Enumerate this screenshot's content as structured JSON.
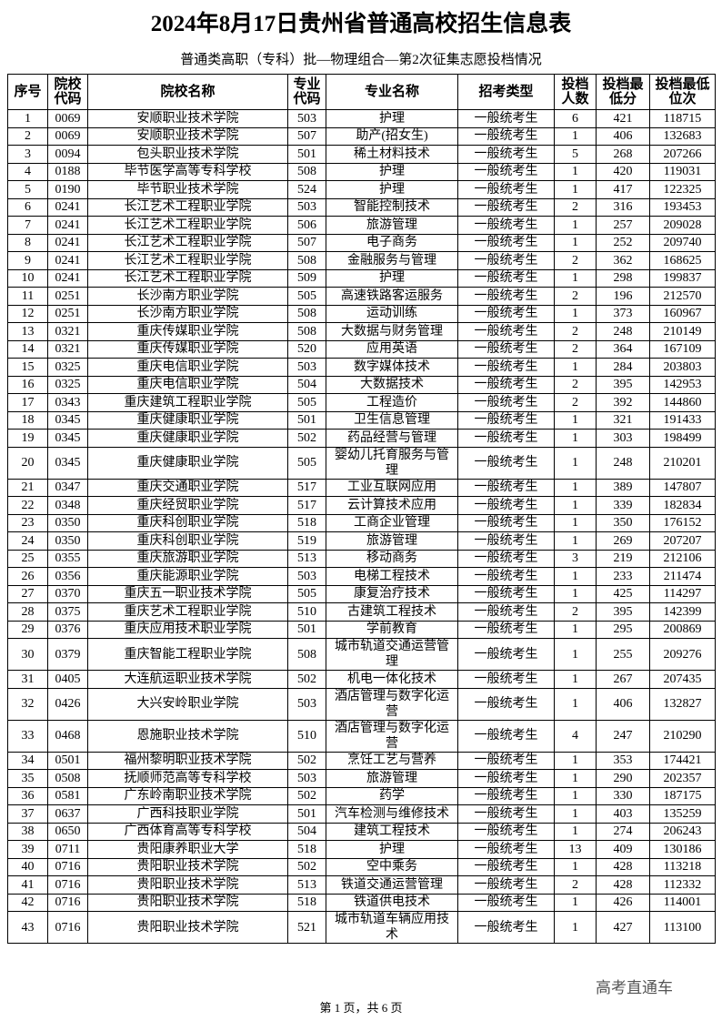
{
  "header": {
    "title": "2024年8月17日贵州省普通高校招生信息表",
    "subtitle": "普通类高职（专科）批—物理组合—第2次征集志愿投档情况"
  },
  "table": {
    "columns": [
      "序号",
      "院校代码",
      "院校名称",
      "专业代码",
      "专业名称",
      "招考类型",
      "投档人数",
      "投档最低分",
      "投档最低位次"
    ],
    "rows": [
      [
        "1",
        "0069",
        "安顺职业技术学院",
        "503",
        "护理",
        "一般统考生",
        "6",
        "421",
        "118715"
      ],
      [
        "2",
        "0069",
        "安顺职业技术学院",
        "507",
        "助产(招女生)",
        "一般统考生",
        "1",
        "406",
        "132683"
      ],
      [
        "3",
        "0094",
        "包头职业技术学院",
        "501",
        "稀土材料技术",
        "一般统考生",
        "5",
        "268",
        "207266"
      ],
      [
        "4",
        "0188",
        "毕节医学高等专科学校",
        "508",
        "护理",
        "一般统考生",
        "1",
        "420",
        "119031"
      ],
      [
        "5",
        "0190",
        "毕节职业技术学院",
        "524",
        "护理",
        "一般统考生",
        "1",
        "417",
        "122325"
      ],
      [
        "6",
        "0241",
        "长江艺术工程职业学院",
        "503",
        "智能控制技术",
        "一般统考生",
        "2",
        "316",
        "193453"
      ],
      [
        "7",
        "0241",
        "长江艺术工程职业学院",
        "506",
        "旅游管理",
        "一般统考生",
        "1",
        "257",
        "209028"
      ],
      [
        "8",
        "0241",
        "长江艺术工程职业学院",
        "507",
        "电子商务",
        "一般统考生",
        "1",
        "252",
        "209740"
      ],
      [
        "9",
        "0241",
        "长江艺术工程职业学院",
        "508",
        "金融服务与管理",
        "一般统考生",
        "2",
        "362",
        "168625"
      ],
      [
        "10",
        "0241",
        "长江艺术工程职业学院",
        "509",
        "护理",
        "一般统考生",
        "1",
        "298",
        "199837"
      ],
      [
        "11",
        "0251",
        "长沙南方职业学院",
        "505",
        "高速铁路客运服务",
        "一般统考生",
        "2",
        "196",
        "212570"
      ],
      [
        "12",
        "0251",
        "长沙南方职业学院",
        "508",
        "运动训练",
        "一般统考生",
        "1",
        "373",
        "160967"
      ],
      [
        "13",
        "0321",
        "重庆传媒职业学院",
        "508",
        "大数据与财务管理",
        "一般统考生",
        "2",
        "248",
        "210149"
      ],
      [
        "14",
        "0321",
        "重庆传媒职业学院",
        "520",
        "应用英语",
        "一般统考生",
        "2",
        "364",
        "167109"
      ],
      [
        "15",
        "0325",
        "重庆电信职业学院",
        "503",
        "数字媒体技术",
        "一般统考生",
        "1",
        "284",
        "203803"
      ],
      [
        "16",
        "0325",
        "重庆电信职业学院",
        "504",
        "大数据技术",
        "一般统考生",
        "2",
        "395",
        "142953"
      ],
      [
        "17",
        "0343",
        "重庆建筑工程职业学院",
        "505",
        "工程造价",
        "一般统考生",
        "2",
        "392",
        "144860"
      ],
      [
        "18",
        "0345",
        "重庆健康职业学院",
        "501",
        "卫生信息管理",
        "一般统考生",
        "1",
        "321",
        "191433"
      ],
      [
        "19",
        "0345",
        "重庆健康职业学院",
        "502",
        "药品经营与管理",
        "一般统考生",
        "1",
        "303",
        "198499"
      ],
      [
        "20",
        "0345",
        "重庆健康职业学院",
        "505",
        "婴幼儿托育服务与管理",
        "一般统考生",
        "1",
        "248",
        "210201"
      ],
      [
        "21",
        "0347",
        "重庆交通职业学院",
        "517",
        "工业互联网应用",
        "一般统考生",
        "1",
        "389",
        "147807"
      ],
      [
        "22",
        "0348",
        "重庆经贸职业学院",
        "517",
        "云计算技术应用",
        "一般统考生",
        "1",
        "339",
        "182834"
      ],
      [
        "23",
        "0350",
        "重庆科创职业学院",
        "518",
        "工商企业管理",
        "一般统考生",
        "1",
        "350",
        "176152"
      ],
      [
        "24",
        "0350",
        "重庆科创职业学院",
        "519",
        "旅游管理",
        "一般统考生",
        "1",
        "269",
        "207207"
      ],
      [
        "25",
        "0355",
        "重庆旅游职业学院",
        "513",
        "移动商务",
        "一般统考生",
        "3",
        "219",
        "212106"
      ],
      [
        "26",
        "0356",
        "重庆能源职业学院",
        "503",
        "电梯工程技术",
        "一般统考生",
        "1",
        "233",
        "211474"
      ],
      [
        "27",
        "0370",
        "重庆五一职业技术学院",
        "505",
        "康复治疗技术",
        "一般统考生",
        "1",
        "425",
        "114297"
      ],
      [
        "28",
        "0375",
        "重庆艺术工程职业学院",
        "510",
        "古建筑工程技术",
        "一般统考生",
        "2",
        "395",
        "142399"
      ],
      [
        "29",
        "0376",
        "重庆应用技术职业学院",
        "501",
        "学前教育",
        "一般统考生",
        "1",
        "295",
        "200869"
      ],
      [
        "30",
        "0379",
        "重庆智能工程职业学院",
        "508",
        "城市轨道交通运营管理",
        "一般统考生",
        "1",
        "255",
        "209276"
      ],
      [
        "31",
        "0405",
        "大连航运职业技术学院",
        "502",
        "机电一体化技术",
        "一般统考生",
        "1",
        "267",
        "207435"
      ],
      [
        "32",
        "0426",
        "大兴安岭职业学院",
        "503",
        "酒店管理与数字化运营",
        "一般统考生",
        "1",
        "406",
        "132827"
      ],
      [
        "33",
        "0468",
        "恩施职业技术学院",
        "510",
        "酒店管理与数字化运营",
        "一般统考生",
        "4",
        "247",
        "210290"
      ],
      [
        "34",
        "0501",
        "福州黎明职业技术学院",
        "502",
        "烹饪工艺与营养",
        "一般统考生",
        "1",
        "353",
        "174421"
      ],
      [
        "35",
        "0508",
        "抚顺师范高等专科学校",
        "503",
        "旅游管理",
        "一般统考生",
        "1",
        "290",
        "202357"
      ],
      [
        "36",
        "0581",
        "广东岭南职业技术学院",
        "502",
        "药学",
        "一般统考生",
        "1",
        "330",
        "187175"
      ],
      [
        "37",
        "0637",
        "广西科技职业学院",
        "501",
        "汽车检测与维修技术",
        "一般统考生",
        "1",
        "403",
        "135259"
      ],
      [
        "38",
        "0650",
        "广西体育高等专科学校",
        "504",
        "建筑工程技术",
        "一般统考生",
        "1",
        "274",
        "206243"
      ],
      [
        "39",
        "0711",
        "贵阳康养职业大学",
        "518",
        "护理",
        "一般统考生",
        "13",
        "409",
        "130186"
      ],
      [
        "40",
        "0716",
        "贵阳职业技术学院",
        "502",
        "空中乘务",
        "一般统考生",
        "1",
        "428",
        "113218"
      ],
      [
        "41",
        "0716",
        "贵阳职业技术学院",
        "513",
        "铁道交通运营管理",
        "一般统考生",
        "2",
        "428",
        "112332"
      ],
      [
        "42",
        "0716",
        "贵阳职业技术学院",
        "518",
        "铁道供电技术",
        "一般统考生",
        "1",
        "426",
        "114001"
      ],
      [
        "43",
        "0716",
        "贵阳职业技术学院",
        "521",
        "城市轨道车辆应用技术",
        "一般统考生",
        "1",
        "427",
        "113100"
      ]
    ]
  },
  "watermark": "高考直通车",
  "footer": "第 1 页，共 6 页"
}
